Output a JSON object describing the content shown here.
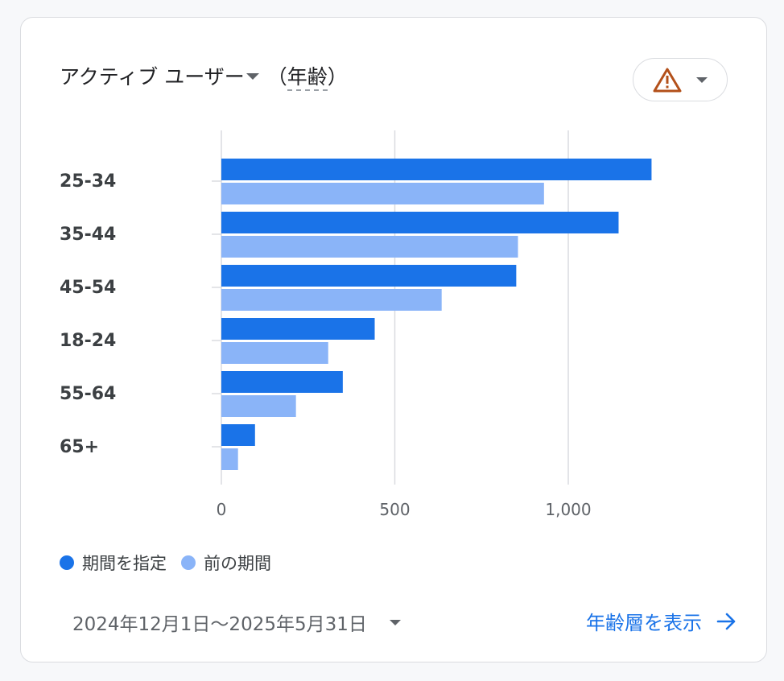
{
  "header": {
    "metric_label": "アクティブ ユーザー",
    "dimension_open": "（",
    "dimension_label": "年齢",
    "dimension_close": "）",
    "warning_icon": "warning-triangle-icon",
    "dropdown_icon": "caret-down-icon"
  },
  "legend": {
    "current_label": "期間を指定",
    "previous_label": "前の期間"
  },
  "footer": {
    "date_range": "2024年12月1日〜2025年5月31日",
    "view_link": "年齢層を表示",
    "arrow_icon": "arrow-right-icon"
  },
  "colors": {
    "current": "#1a73e8",
    "previous": "#8ab4f8",
    "warning": "#b3501a",
    "grid": "#dadce0"
  },
  "chart_data": {
    "type": "bar",
    "orientation": "horizontal",
    "categories": [
      "25-34",
      "35-44",
      "45-54",
      "18-24",
      "55-64",
      "65+"
    ],
    "series": [
      {
        "name": "期間を指定",
        "values": [
          1240,
          1145,
          850,
          442,
          350,
          97
        ]
      },
      {
        "name": "前の期間",
        "values": [
          930,
          855,
          635,
          308,
          215,
          48
        ]
      }
    ],
    "xlim": [
      0,
      1250
    ],
    "x_ticks": [
      0,
      500,
      1000
    ],
    "x_tick_labels": [
      "0",
      "500",
      "1,000"
    ],
    "grid": true,
    "legend_position": "bottom-left"
  }
}
